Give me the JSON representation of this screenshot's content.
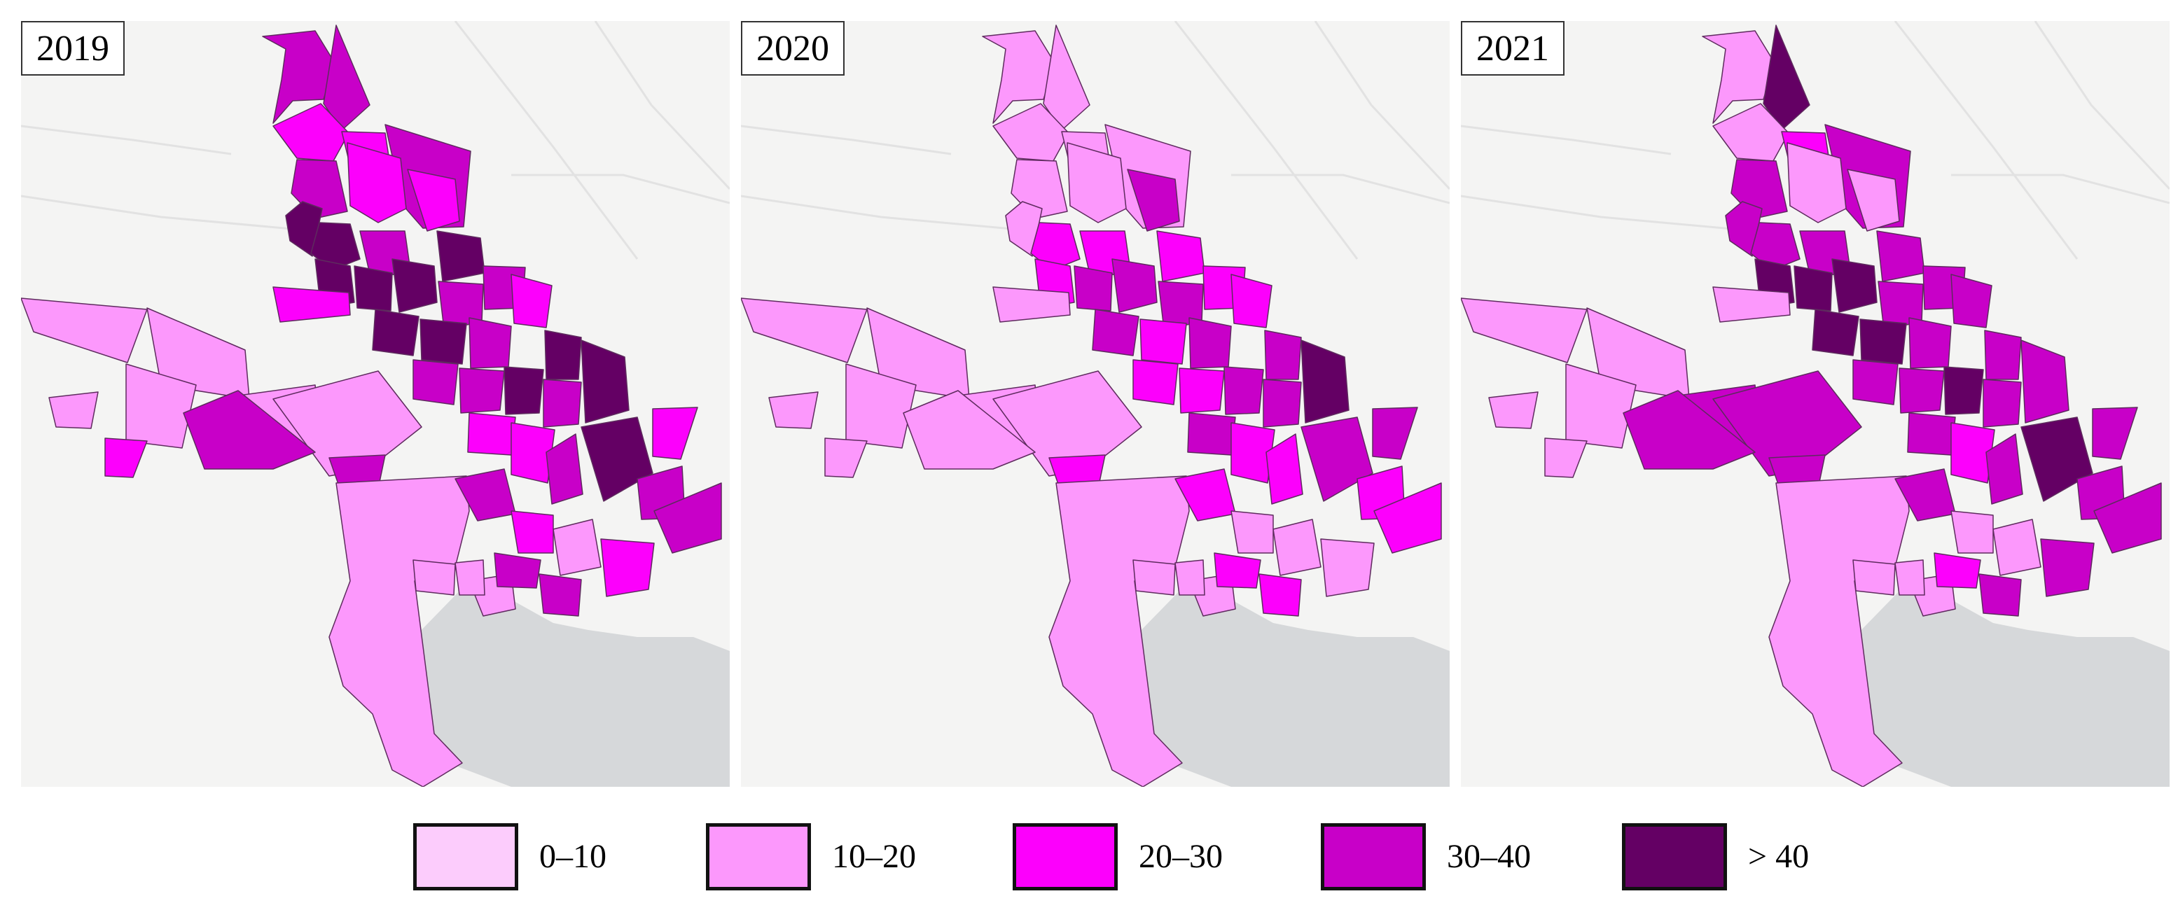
{
  "panels": [
    {
      "year": "2019",
      "classes": [
        3,
        3,
        2,
        2,
        3,
        3,
        4,
        2,
        4,
        2,
        3,
        4,
        4,
        4,
        4,
        3,
        3,
        4,
        4,
        3,
        2,
        3,
        3,
        4,
        4,
        3,
        4,
        2,
        2,
        1,
        1,
        1,
        1,
        2,
        1,
        1,
        3,
        3,
        1,
        3,
        2,
        3,
        4,
        2,
        3,
        1,
        2,
        2,
        3,
        1,
        1,
        1,
        3,
        3
      ]
    },
    {
      "year": "2020",
      "classes": [
        1,
        1,
        1,
        1,
        1,
        1,
        1,
        1,
        2,
        3,
        2,
        2,
        3,
        3,
        2,
        2,
        3,
        3,
        2,
        3,
        2,
        2,
        2,
        3,
        3,
        3,
        4,
        3,
        1,
        1,
        1,
        1,
        1,
        1,
        1,
        1,
        1,
        2,
        1,
        2,
        2,
        2,
        3,
        3,
        2,
        1,
        1,
        1,
        2,
        1,
        1,
        1,
        2,
        2
      ]
    },
    {
      "year": "2021",
      "classes": [
        1,
        4,
        1,
        2,
        3,
        3,
        3,
        1,
        3,
        1,
        3,
        4,
        4,
        4,
        3,
        3,
        3,
        4,
        4,
        3,
        3,
        3,
        3,
        4,
        3,
        3,
        3,
        3,
        1,
        1,
        1,
        1,
        1,
        1,
        3,
        3,
        3,
        3,
        1,
        3,
        2,
        3,
        4,
        3,
        3,
        1,
        1,
        3,
        3,
        1,
        1,
        1,
        2,
        3
      ]
    }
  ],
  "legend": {
    "classes": [
      {
        "label": "0–10",
        "color": "#fcccfc"
      },
      {
        "label": "10–20",
        "color": "#fc98fc"
      },
      {
        "label": "20–30",
        "color": "#fc00fc"
      },
      {
        "label": "30–40",
        "color": "#c800c8"
      },
      {
        "label": "> 40",
        "color": "#640064"
      }
    ]
  },
  "basemap": {
    "land_color": "#f4f4f3",
    "sea_color": "#d6d8da",
    "road_color": "#e2e2e2",
    "district_border_color": "#5e2b5e"
  }
}
